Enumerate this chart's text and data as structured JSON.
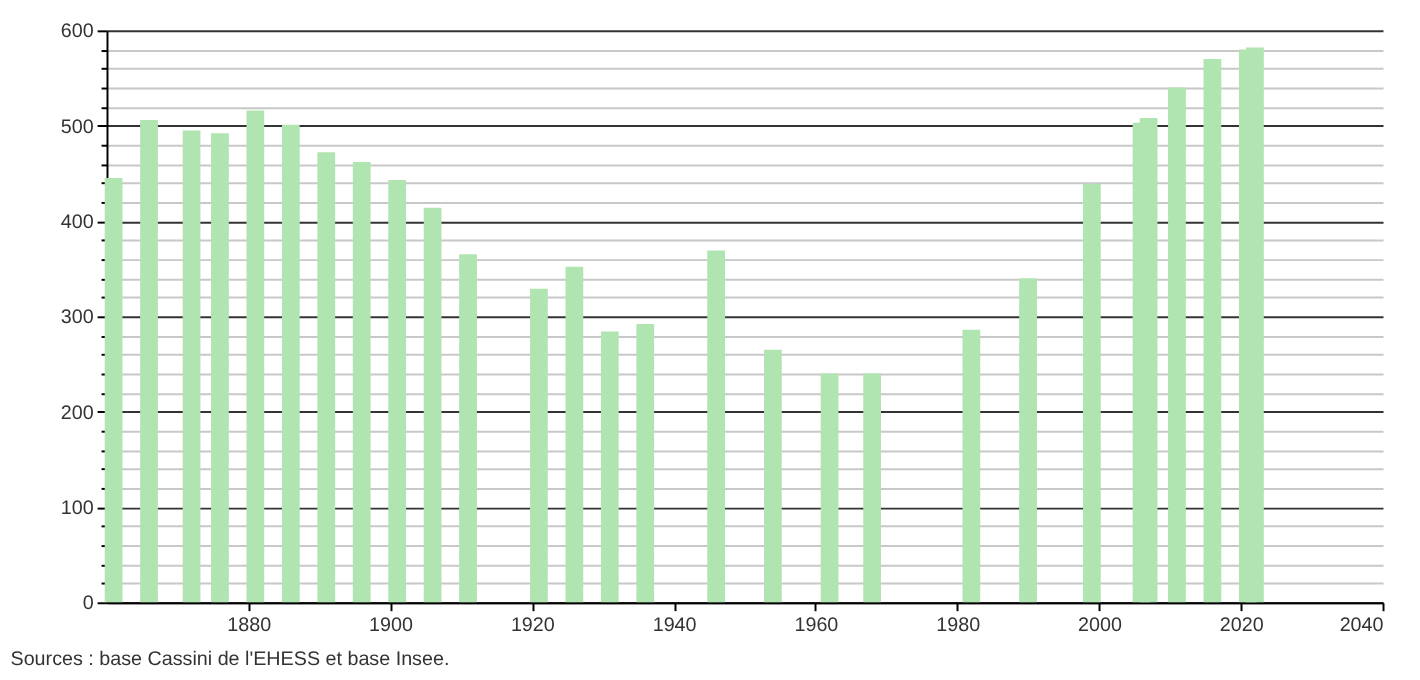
{
  "chart_data": {
    "type": "bar",
    "x": [
      1861,
      1866,
      1872,
      1876,
      1881,
      1886,
      1891,
      1896,
      1901,
      1906,
      1911,
      1921,
      1926,
      1931,
      1936,
      1946,
      1954,
      1962,
      1968,
      1982,
      1990,
      1999,
      2006,
      2007,
      2011,
      2016,
      2021,
      2022
    ],
    "values": [
      445,
      506,
      495,
      492,
      516,
      501,
      472,
      462,
      443,
      414,
      365,
      329,
      352,
      284,
      292,
      369,
      265,
      240,
      240,
      286,
      340,
      439,
      503,
      508,
      540,
      570,
      580,
      582
    ],
    "color": "#b0e4b0",
    "xlim": [
      1860,
      2040
    ],
    "xticks": [
      1880,
      1900,
      1920,
      1940,
      1960,
      1980,
      2000,
      2020,
      2040
    ],
    "ylim": [
      0,
      600
    ],
    "yticks": [
      0,
      {
        "value": 20,
        "label": null
      },
      {
        "value": 40,
        "label": null
      },
      {
        "value": 60,
        "label": null
      },
      {
        "value": 80,
        "label": null
      },
      100,
      {
        "value": 120,
        "label": null
      },
      {
        "value": 140,
        "label": null
      },
      {
        "value": 160,
        "label": null
      },
      {
        "value": 180,
        "label": null
      },
      200,
      {
        "value": 220,
        "label": null
      },
      {
        "value": 240,
        "label": null
      },
      {
        "value": 260,
        "label": null
      },
      {
        "value": 280,
        "label": null
      },
      300,
      {
        "value": 320,
        "label": null
      },
      {
        "value": 340,
        "label": null
      },
      {
        "value": 360,
        "label": null
      },
      {
        "value": 380,
        "label": null
      },
      400,
      {
        "value": 420,
        "label": null
      },
      {
        "value": 440,
        "label": null
      },
      {
        "value": 460,
        "label": null
      },
      {
        "value": 480,
        "label": null
      },
      500,
      {
        "value": 520,
        "label": null
      },
      {
        "value": 540,
        "label": null
      },
      {
        "value": 560,
        "label": null
      },
      {
        "value": 580,
        "label": null
      },
      600
    ],
    "grid": "y",
    "annotations": [
      "Sources : base Cassini de l'EHESS et base Insee."
    ]
  }
}
